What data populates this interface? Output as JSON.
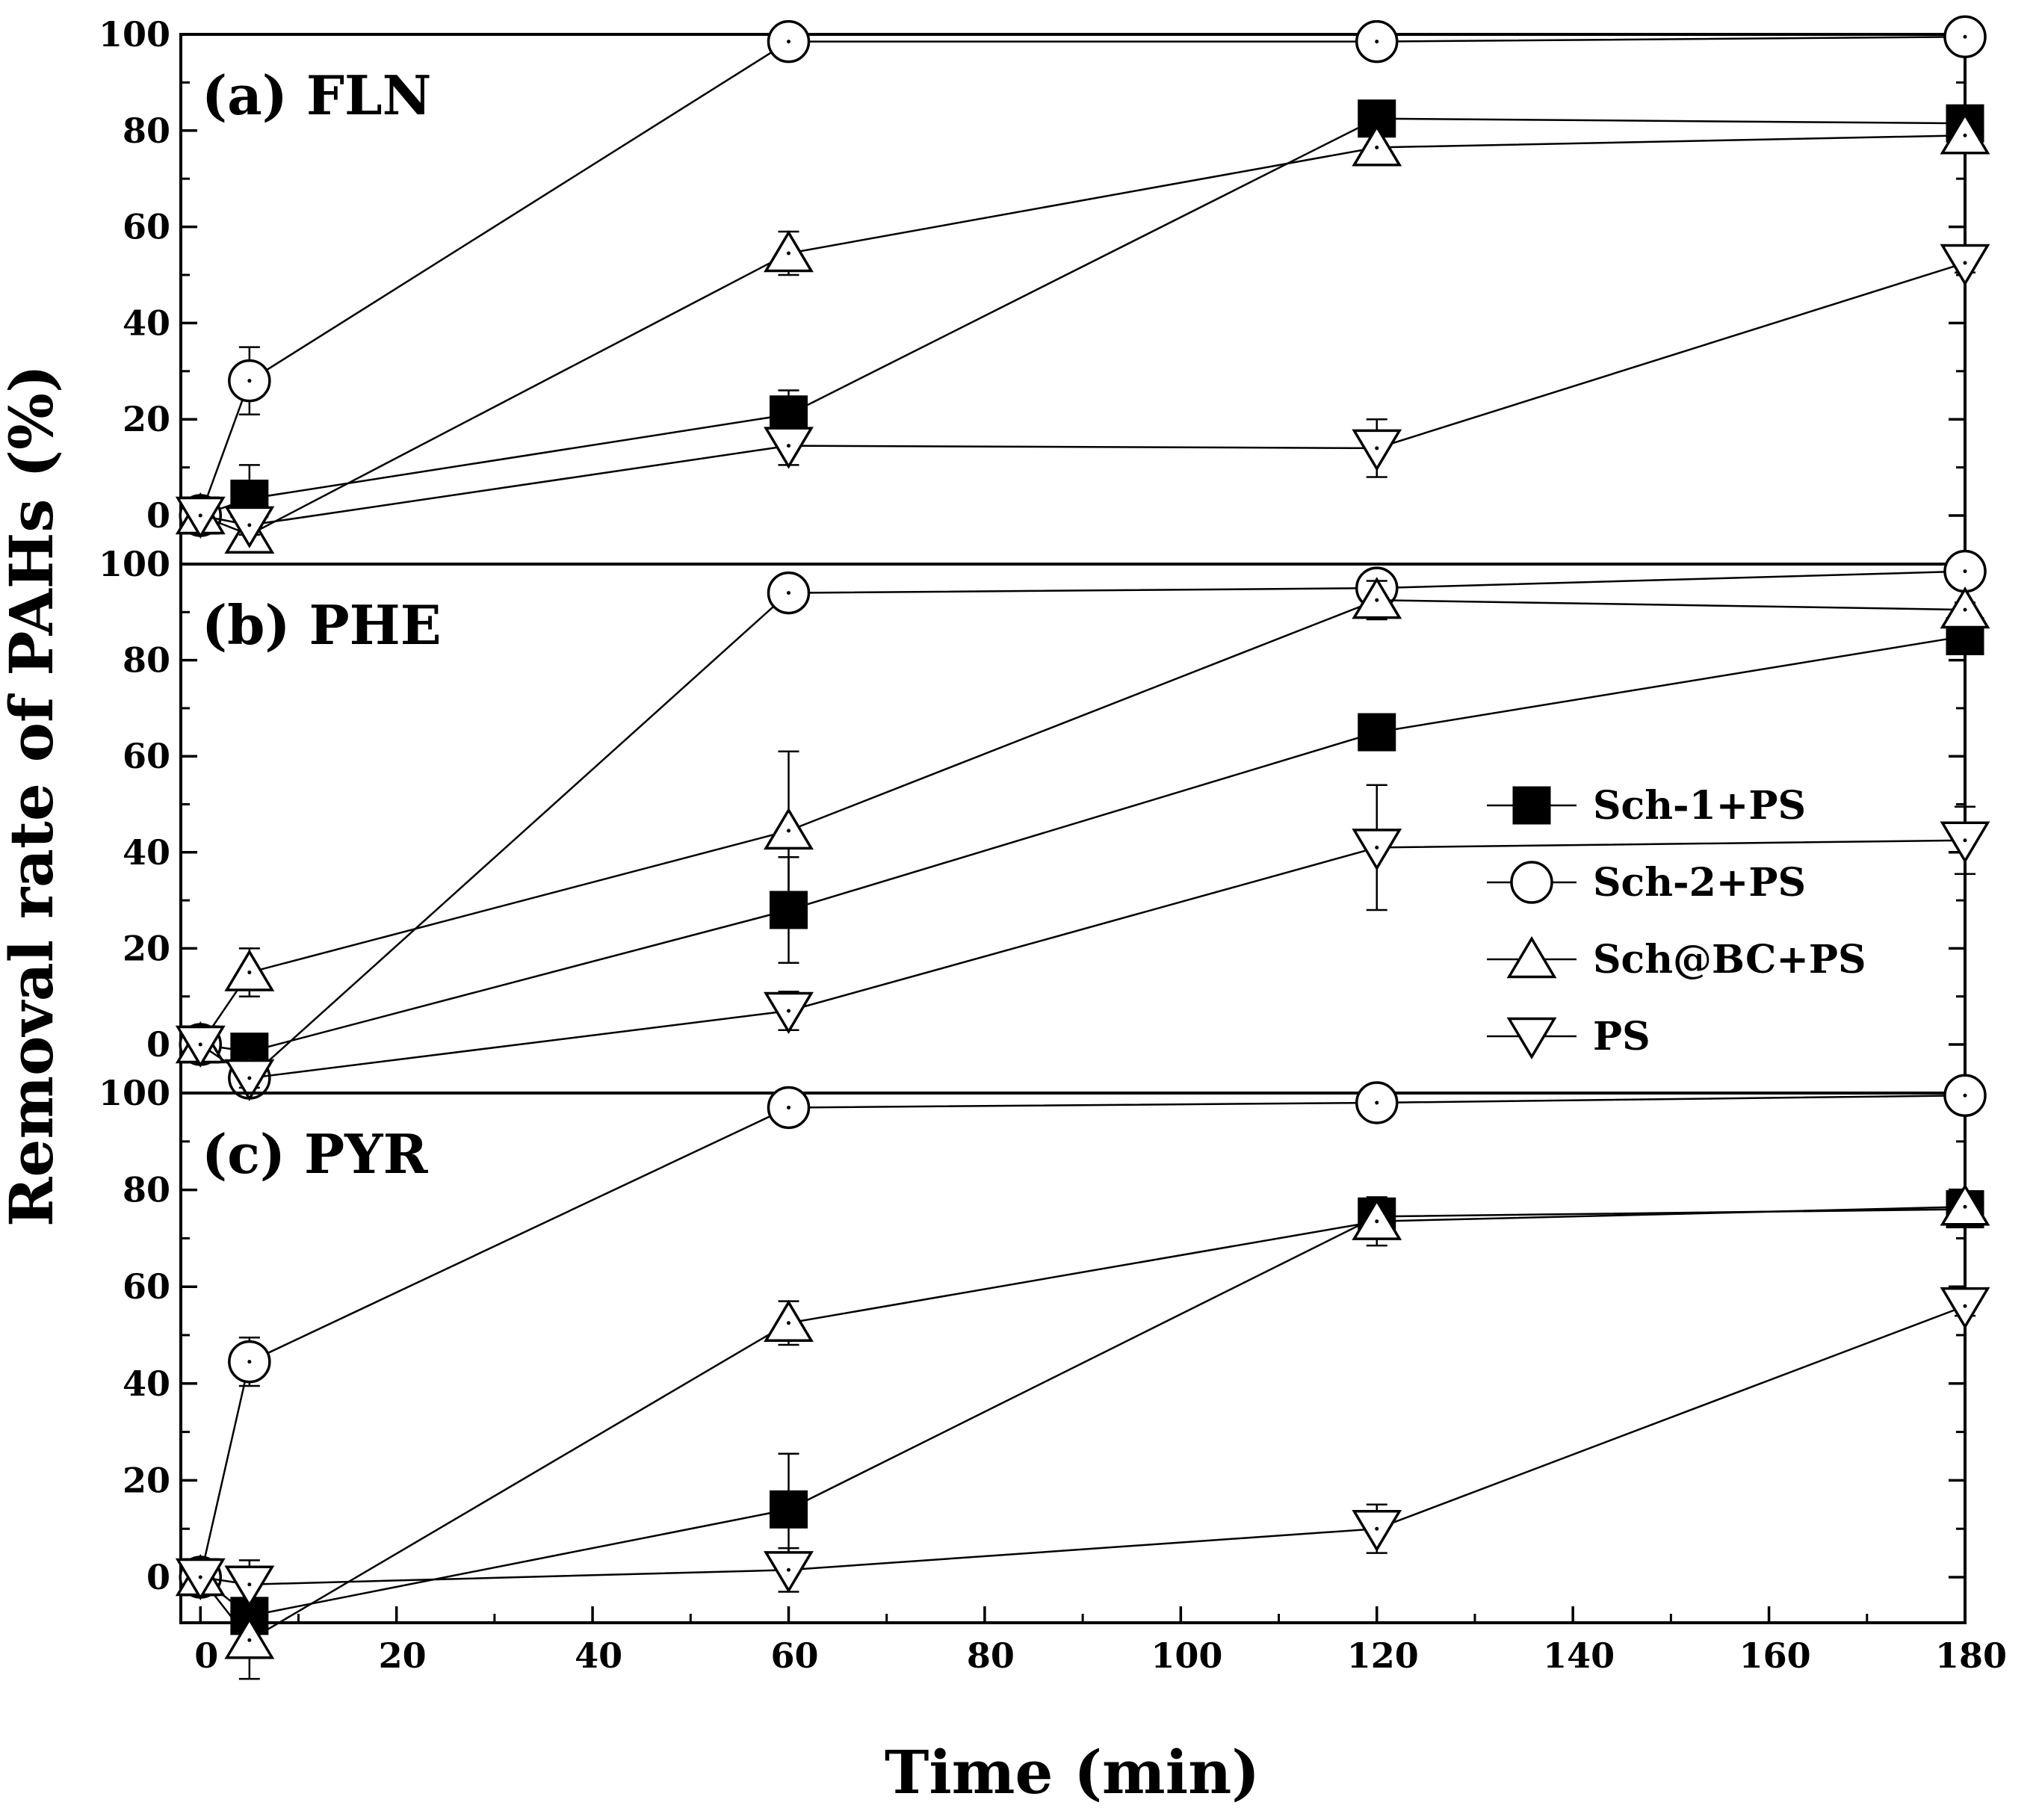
{
  "chart_data": {
    "type": "line",
    "xlabel": "Time (min)",
    "ylabel": "Removal rate of PAHs (%)",
    "xlim": [
      -2,
      180
    ],
    "x_ticks": [
      0,
      20,
      40,
      60,
      80,
      100,
      120,
      140,
      160,
      180
    ],
    "y_ticks": [
      0,
      20,
      40,
      60,
      80,
      100
    ],
    "ylim_a": [
      -8,
      100
    ],
    "ylim_b": [
      -8,
      100
    ],
    "ylim_c": [
      -10,
      100
    ],
    "x": [
      0,
      5,
      60,
      120,
      180
    ],
    "legend": {
      "placement": "right, middle panel",
      "entries": [
        {
          "label": "Sch-1+PS",
          "marker": "filled-square"
        },
        {
          "label": "Sch-2+PS",
          "marker": "open-circle"
        },
        {
          "label": "Sch@BC+PS",
          "marker": "open-triangle-up"
        },
        {
          "label": "PS",
          "marker": "open-triangle-down"
        }
      ]
    },
    "panels": [
      {
        "label": "(a) FLN",
        "series": [
          {
            "name": "Sch-1+PS",
            "marker": "filled-square",
            "values": [
              0,
              3.5,
              21,
              82.5,
              81.5
            ],
            "errors": [
              0,
              7,
              5,
              1.5,
              1.5
            ]
          },
          {
            "name": "Sch-2+PS",
            "marker": "open-circle",
            "values": [
              0,
              28,
              98.5,
              98.5,
              99.5
            ],
            "errors": [
              0,
              7,
              2,
              1.5,
              1
            ]
          },
          {
            "name": "Sch@BC+PS",
            "marker": "open-triangle-up",
            "values": [
              0,
              -4,
              54.5,
              76.5,
              79
            ],
            "errors": [
              0,
              2,
              4.5,
              3.5,
              1.5
            ]
          },
          {
            "name": "PS",
            "marker": "open-triangle-down",
            "values": [
              0,
              -2,
              14.5,
              14,
              52.5
            ],
            "errors": [
              0,
              2,
              4,
              6,
              2
            ]
          }
        ]
      },
      {
        "label": "(b) PHE",
        "series": [
          {
            "name": "Sch-1+PS",
            "marker": "filled-square",
            "values": [
              0,
              -1.5,
              28,
              65,
              85
            ],
            "errors": [
              0,
              1.5,
              11,
              1.5,
              1.5
            ]
          },
          {
            "name": "Sch-2+PS",
            "marker": "open-circle",
            "values": [
              0,
              -7,
              94,
              95,
              98.5
            ],
            "errors": [
              0,
              2,
              1.5,
              1.5,
              1
            ]
          },
          {
            "name": "Sch@BC+PS",
            "marker": "open-triangle-up",
            "values": [
              0,
              15,
              44.5,
              92.5,
              90.5
            ],
            "errors": [
              0,
              5,
              16.5,
              4,
              1.5
            ]
          },
          {
            "name": "PS",
            "marker": "open-triangle-down",
            "values": [
              0,
              -7,
              7,
              41,
              42.5
            ],
            "errors": [
              0,
              2,
              4,
              13,
              7
            ]
          }
        ]
      },
      {
        "label": "(c) PYR",
        "series": [
          {
            "name": "Sch-1+PS",
            "marker": "filled-square",
            "values": [
              0,
              -8,
              14,
              74.5,
              76
            ],
            "errors": [
              0,
              2,
              11.5,
              2,
              1
            ]
          },
          {
            "name": "Sch-2+PS",
            "marker": "open-circle",
            "values": [
              0,
              44.5,
              97,
              98,
              99.5
            ],
            "errors": [
              0,
              5,
              2,
              1.5,
              1
            ]
          },
          {
            "name": "Sch@BC+PS",
            "marker": "open-triangle-up",
            "values": [
              0,
              -13,
              52.5,
              73.5,
              76.5
            ],
            "errors": [
              0,
              8,
              4.5,
              5,
              1.5
            ]
          },
          {
            "name": "PS",
            "marker": "open-triangle-down",
            "values": [
              0,
              -1.5,
              1.5,
              10,
              56
            ],
            "errors": [
              0,
              5,
              4.5,
              5,
              2
            ]
          }
        ]
      }
    ]
  }
}
